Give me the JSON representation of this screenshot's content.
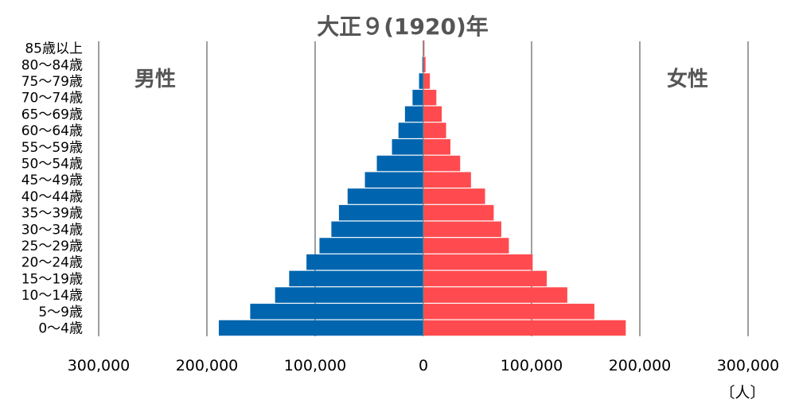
{
  "chart_data": {
    "type": "bar",
    "orientation": "horizontal",
    "layout": "population-pyramid",
    "title": "大正９(1920)年",
    "unit_label": "〔人〕",
    "categories": [
      "0〜4歳",
      "5〜9歳",
      "10〜14歳",
      "15〜19歳",
      "20〜24歳",
      "25〜29歳",
      "30〜34歳",
      "35〜39歳",
      "40〜44歳",
      "45〜49歳",
      "50〜54歳",
      "55〜59歳",
      "60〜64歳",
      "65〜69歳",
      "70〜74歳",
      "75〜79歳",
      "80〜84歳",
      "85歳以上"
    ],
    "series": [
      {
        "name": "男性",
        "color": "#0065AE",
        "side": "left",
        "values": [
          189000,
          160000,
          137000,
          124000,
          108000,
          96000,
          85000,
          78000,
          70000,
          54000,
          43000,
          29000,
          23000,
          17000,
          10000,
          4000,
          1000,
          500
        ]
      },
      {
        "name": "女性",
        "color": "#FF4B4F",
        "side": "right",
        "values": [
          187000,
          158000,
          133000,
          114000,
          101000,
          79000,
          72000,
          65000,
          57000,
          44000,
          34000,
          25000,
          21000,
          17000,
          12000,
          6000,
          2000,
          1000
        ]
      }
    ],
    "xlim": [
      -300000,
      300000
    ],
    "x_ticks": [
      -300000,
      -200000,
      -100000,
      0,
      100000,
      200000,
      300000
    ],
    "x_tick_labels": [
      "300,000",
      "200,000",
      "100,000",
      "0",
      "100,000",
      "200,000",
      "300,000"
    ],
    "grid": true,
    "legend": "none"
  }
}
